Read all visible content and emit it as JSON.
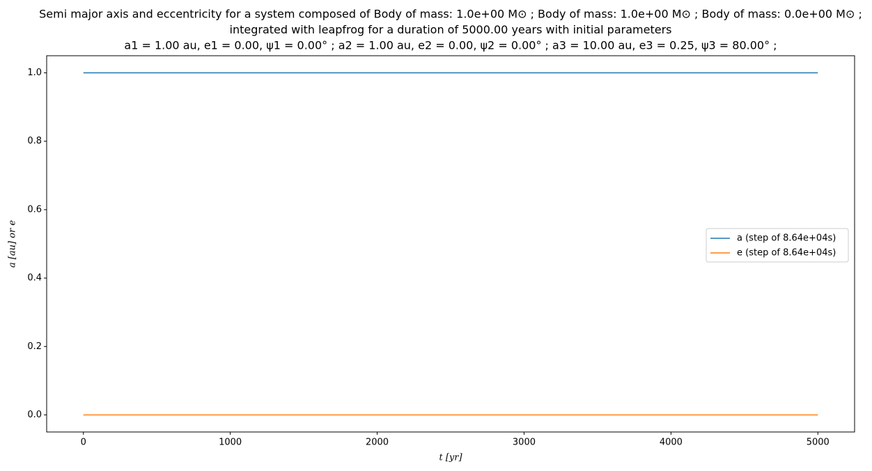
{
  "chart_data": {
    "type": "line",
    "title": [
      "Semi major axis and eccentricity for a system composed of Body of mass: 1.0e+00 M⊙ ; Body of mass: 1.0e+00 M⊙ ; Body of mass: 0.0e+00 M⊙ ;",
      "integrated with leapfrog for a duration of 5000.00 years with initial parameters",
      "a1 = 1.00 au, e1 = 0.00, ψ1 = 0.00° ; a2 = 1.00 au, e2 = 0.00, ψ2 = 0.00° ; a3 = 10.00 au, e3 = 0.25, ψ3 = 80.00° ;"
    ],
    "x_label": "t [yr]",
    "y_label": "a [au] or e",
    "x": [
      0,
      5000
    ],
    "series": [
      {
        "name": "a (step of 8.64e+04s)",
        "color": "#1f77b4",
        "values": [
          1,
          1
        ]
      },
      {
        "name": "e (step of 8.64e+04s)",
        "color": "#ff7f0e",
        "values": [
          0,
          0
        ]
      }
    ],
    "xlim": [
      -250,
      5250
    ],
    "xticks": [
      0,
      1000,
      2000,
      3000,
      4000,
      5000
    ],
    "ylim": [
      -0.05,
      1.05
    ],
    "yticks": [
      {
        "value": 0,
        "label": "0.0"
      },
      0.2,
      0.4,
      0.6,
      0.8,
      {
        "value": 1,
        "label": "1.0"
      }
    ],
    "legend": "right"
  }
}
